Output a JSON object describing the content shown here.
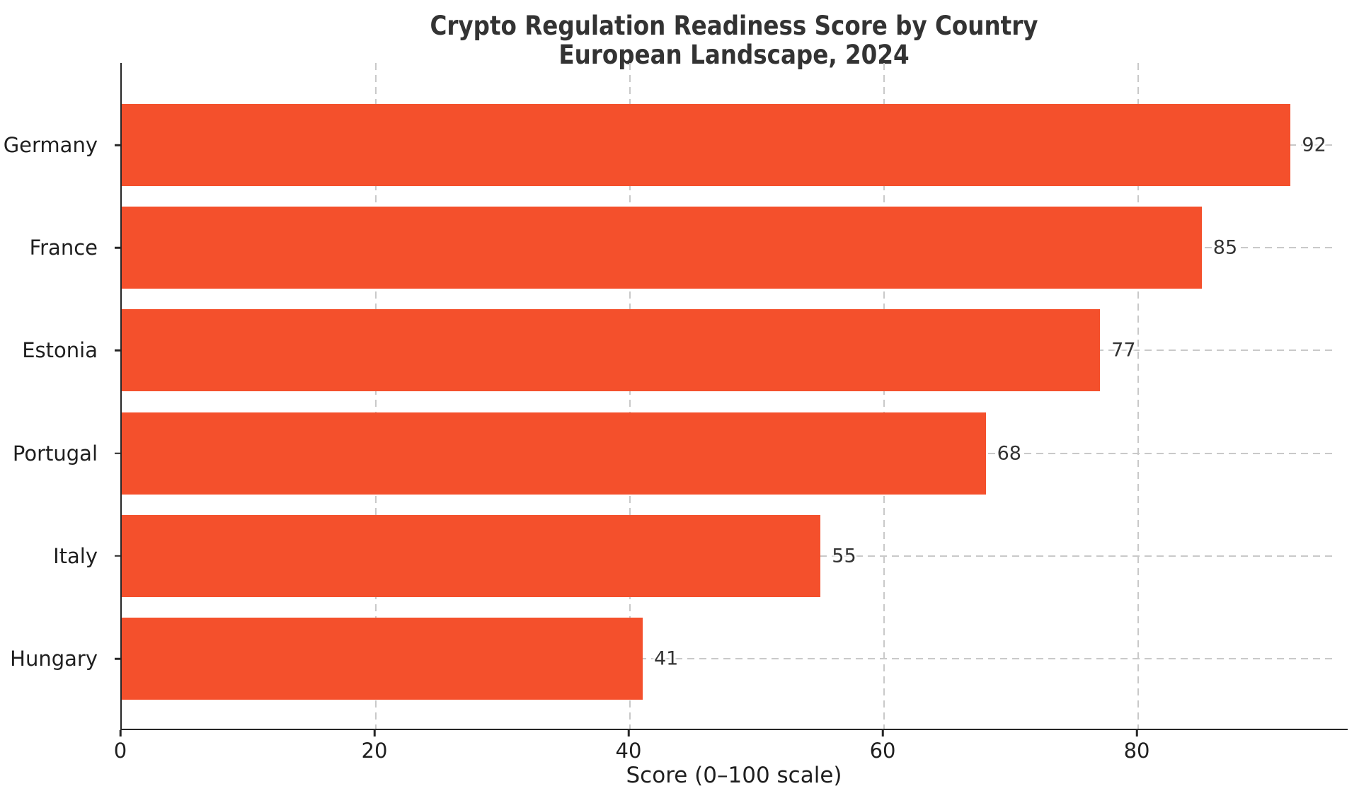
{
  "chart_data": {
    "type": "bar",
    "orientation": "horizontal",
    "title": "Crypto Regulation Readiness Score by Country",
    "subtitle": "European Landscape, 2024",
    "categories": [
      "Germany",
      "France",
      "Estonia",
      "Portugal",
      "Italy",
      "Hungary"
    ],
    "values": [
      92,
      85,
      77,
      68,
      55,
      41
    ],
    "xlabel": "Score (0–100 scale)",
    "x_ticks": [
      0,
      20,
      40,
      60,
      80
    ],
    "xlim": [
      0,
      96.6
    ],
    "grid": "dashed gridlines on both axes",
    "legend": "none",
    "bar_color": "#F4502C",
    "grid_color": "#c9c9c9",
    "axis_color": "#262626",
    "text_color": "#1f1f1f",
    "title_color": "#333333",
    "value_label_color": "#333333"
  }
}
